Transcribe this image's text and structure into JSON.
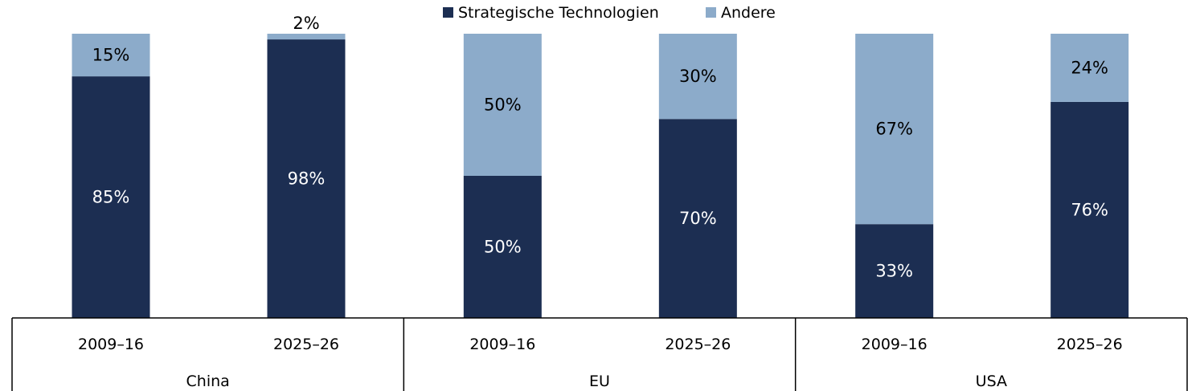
{
  "chart_data": {
    "type": "bar",
    "stacked": true,
    "percent": true,
    "legend": {
      "position": "top-center",
      "items": [
        {
          "name": "Strategische Technologien",
          "color": "#1c2e52"
        },
        {
          "name": "Andere",
          "color": "#8cabca"
        }
      ]
    },
    "groups": [
      {
        "name": "China",
        "categories": [
          "2009–16",
          "2025–26"
        ]
      },
      {
        "name": "EU",
        "categories": [
          "2009–16",
          "2025–26"
        ]
      },
      {
        "name": "USA",
        "categories": [
          "2009–16",
          "2025–26"
        ]
      }
    ],
    "series": [
      {
        "name": "Strategische Technologien",
        "color": "#1c2e52",
        "values": [
          85,
          98,
          50,
          70,
          33,
          76
        ],
        "labels": [
          "85%",
          "98%",
          "50%",
          "70%",
          "33%",
          "76%"
        ]
      },
      {
        "name": "Andere",
        "color": "#8cabca",
        "values": [
          15,
          2,
          50,
          30,
          67,
          24
        ],
        "labels": [
          "15%",
          "2%",
          "50%",
          "30%",
          "67%",
          "24%"
        ]
      }
    ],
    "ylim": [
      0,
      100
    ],
    "title": "",
    "xlabel": "",
    "ylabel": ""
  }
}
